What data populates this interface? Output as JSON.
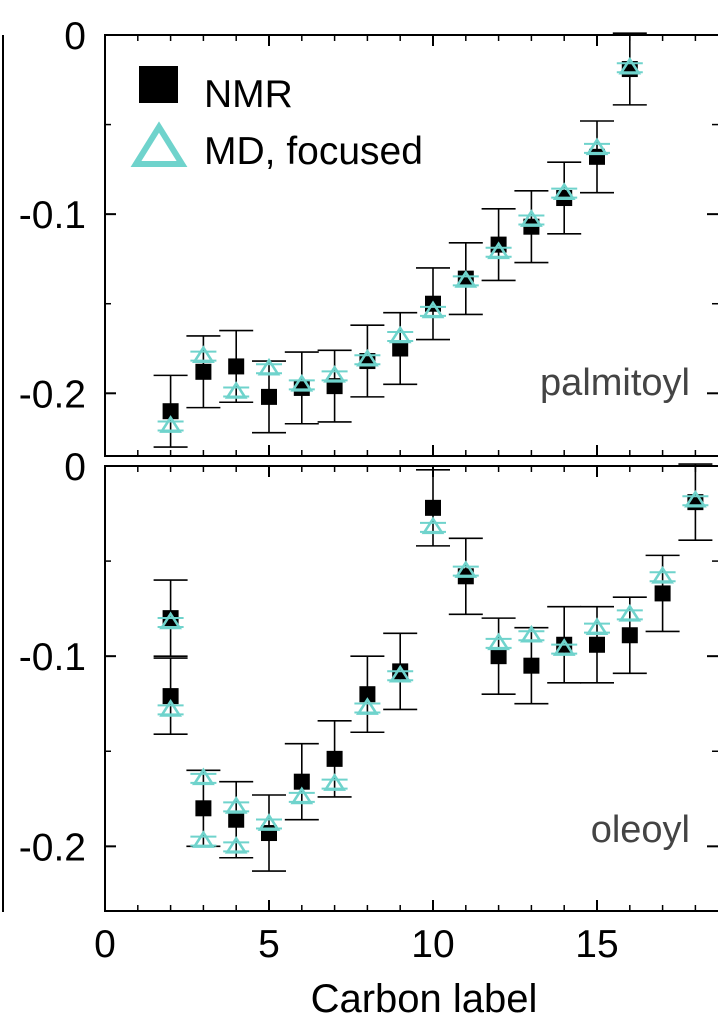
{
  "chart_data": {
    "type": "scatter",
    "xlabel": "Carbon label",
    "x_ticks": [
      "0",
      "5",
      "10",
      "15"
    ],
    "xlim": [
      0,
      18.5
    ],
    "legend": {
      "placement": "top-left",
      "entries": [
        {
          "label": "NMR",
          "marker": "filled-square",
          "color": "#000000"
        },
        {
          "label": "MD, focused",
          "marker": "open-triangle",
          "color": "#6fd3cc"
        }
      ]
    },
    "panels": [
      {
        "label": "palmitoyl",
        "ylim": [
          -0.235,
          0
        ],
        "y_ticks": [
          {
            "value": 0,
            "label": "0"
          },
          {
            "value": -0.1,
            "label": "-0.1"
          },
          {
            "value": -0.2,
            "label": "-0.2"
          }
        ],
        "series": [
          {
            "name": "NMR",
            "points": [
              {
                "x": 2,
                "y": -0.21,
                "err": 0.02
              },
              {
                "x": 3,
                "y": -0.188,
                "err": 0.02
              },
              {
                "x": 4,
                "y": -0.185,
                "err": 0.02
              },
              {
                "x": 5,
                "y": -0.202,
                "err": 0.02
              },
              {
                "x": 6,
                "y": -0.197,
                "err": 0.02
              },
              {
                "x": 7,
                "y": -0.196,
                "err": 0.02
              },
              {
                "x": 8,
                "y": -0.182,
                "err": 0.02
              },
              {
                "x": 9,
                "y": -0.175,
                "err": 0.02
              },
              {
                "x": 10,
                "y": -0.15,
                "err": 0.02
              },
              {
                "x": 11,
                "y": -0.136,
                "err": 0.02
              },
              {
                "x": 12,
                "y": -0.117,
                "err": 0.02
              },
              {
                "x": 13,
                "y": -0.107,
                "err": 0.02
              },
              {
                "x": 14,
                "y": -0.091,
                "err": 0.02
              },
              {
                "x": 15,
                "y": -0.068,
                "err": 0.02
              },
              {
                "x": 16,
                "y": -0.019,
                "err": 0.02
              }
            ]
          },
          {
            "name": "MD, focused",
            "points": [
              {
                "x": 2,
                "y": -0.218
              },
              {
                "x": 3,
                "y": -0.179
              },
              {
                "x": 4,
                "y": -0.199
              },
              {
                "x": 5,
                "y": -0.186
              },
              {
                "x": 6,
                "y": -0.195
              },
              {
                "x": 7,
                "y": -0.19
              },
              {
                "x": 8,
                "y": -0.181
              },
              {
                "x": 9,
                "y": -0.168
              },
              {
                "x": 10,
                "y": -0.154
              },
              {
                "x": 11,
                "y": -0.137
              },
              {
                "x": 12,
                "y": -0.121
              },
              {
                "x": 13,
                "y": -0.103
              },
              {
                "x": 14,
                "y": -0.088
              },
              {
                "x": 15,
                "y": -0.063
              },
              {
                "x": 16,
                "y": -0.018
              }
            ]
          }
        ]
      },
      {
        "label": "oleoyl",
        "ylim": [
          -0.234,
          0
        ],
        "y_ticks": [
          {
            "value": 0,
            "label": "0"
          },
          {
            "value": -0.1,
            "label": "-0.1"
          },
          {
            "value": -0.2,
            "label": "-0.2"
          }
        ],
        "series": [
          {
            "name": "NMR",
            "points": [
              {
                "x": 2,
                "y": -0.08,
                "err": 0.02
              },
              {
                "x": 2,
                "y": -0.121,
                "err": 0.02
              },
              {
                "x": 3,
                "y": -0.18,
                "err": 0.02
              },
              {
                "x": 4,
                "y": -0.186,
                "err": 0.02
              },
              {
                "x": 5,
                "y": -0.193,
                "err": 0.02
              },
              {
                "x": 6,
                "y": -0.166,
                "err": 0.02
              },
              {
                "x": 7,
                "y": -0.154,
                "err": 0.02
              },
              {
                "x": 8,
                "y": -0.12,
                "err": 0.02
              },
              {
                "x": 9,
                "y": -0.108,
                "err": 0.02
              },
              {
                "x": 10,
                "y": -0.022,
                "err": 0.02
              },
              {
                "x": 11,
                "y": -0.058,
                "err": 0.02
              },
              {
                "x": 12,
                "y": -0.1,
                "err": 0.02
              },
              {
                "x": 13,
                "y": -0.105,
                "err": 0.02
              },
              {
                "x": 14,
                "y": -0.094,
                "err": 0.02
              },
              {
                "x": 15,
                "y": -0.094,
                "err": 0.02
              },
              {
                "x": 16,
                "y": -0.089,
                "err": 0.02
              },
              {
                "x": 17,
                "y": -0.067,
                "err": 0.02
              },
              {
                "x": 18,
                "y": -0.019,
                "err": 0.02
              }
            ]
          },
          {
            "name": "MD, focused",
            "points": [
              {
                "x": 2,
                "y": -0.082
              },
              {
                "x": 2,
                "y": -0.128
              },
              {
                "x": 3,
                "y": -0.164
              },
              {
                "x": 3,
                "y": -0.197
              },
              {
                "x": 4,
                "y": -0.179
              },
              {
                "x": 4,
                "y": -0.2
              },
              {
                "x": 5,
                "y": -0.188
              },
              {
                "x": 6,
                "y": -0.174
              },
              {
                "x": 7,
                "y": -0.167
              },
              {
                "x": 8,
                "y": -0.127
              },
              {
                "x": 9,
                "y": -0.11
              },
              {
                "x": 10,
                "y": -0.032
              },
              {
                "x": 11,
                "y": -0.055
              },
              {
                "x": 12,
                "y": -0.093
              },
              {
                "x": 13,
                "y": -0.089
              },
              {
                "x": 14,
                "y": -0.096
              },
              {
                "x": 15,
                "y": -0.085
              },
              {
                "x": 16,
                "y": -0.078
              },
              {
                "x": 17,
                "y": -0.058
              },
              {
                "x": 18,
                "y": -0.018
              }
            ]
          }
        ]
      }
    ]
  }
}
